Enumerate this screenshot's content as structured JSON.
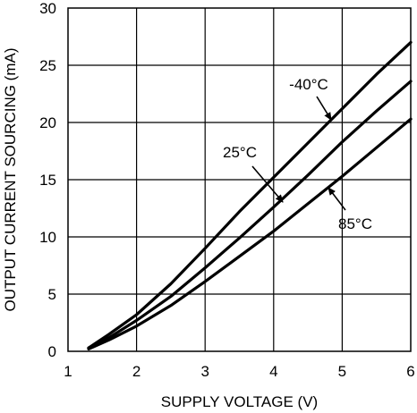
{
  "chart_data": {
    "type": "line",
    "title": "",
    "xlabel": "SUPPLY VOLTAGE (V)",
    "ylabel": "OUTPUT CURRENT SOURCING (mA)",
    "xlim": [
      1,
      6
    ],
    "ylim": [
      0,
      30
    ],
    "xticks": [
      1,
      2,
      3,
      4,
      5,
      6
    ],
    "yticks": [
      0,
      5,
      10,
      15,
      20,
      25,
      30
    ],
    "grid": true,
    "series": [
      {
        "name": "-40°C",
        "x": [
          1.3,
          1.6,
          2.0,
          2.5,
          3.0,
          3.5,
          4.0,
          4.5,
          5.0,
          5.5,
          6.0
        ],
        "y": [
          0.3,
          1.5,
          3.2,
          5.9,
          9.0,
          12.2,
          15.2,
          18.2,
          21.2,
          24.2,
          27.0
        ]
      },
      {
        "name": "25°C",
        "x": [
          1.3,
          1.6,
          2.0,
          2.5,
          3.0,
          3.5,
          4.0,
          4.5,
          5.0,
          5.5,
          6.0
        ],
        "y": [
          0.3,
          1.2,
          2.7,
          4.8,
          7.3,
          9.9,
          12.6,
          15.4,
          18.3,
          21.0,
          23.6
        ]
      },
      {
        "name": "85°C",
        "x": [
          1.3,
          1.6,
          2.0,
          2.5,
          3.0,
          3.5,
          4.0,
          4.5,
          5.0,
          5.5,
          6.0
        ],
        "y": [
          0.2,
          1.0,
          2.2,
          4.0,
          6.1,
          8.3,
          10.5,
          12.9,
          15.3,
          17.8,
          20.3
        ]
      }
    ],
    "annotations": [
      {
        "text": "-40°C",
        "series": 0
      },
      {
        "text": "25°C",
        "series": 1
      },
      {
        "text": "85°C",
        "series": 2
      }
    ]
  }
}
